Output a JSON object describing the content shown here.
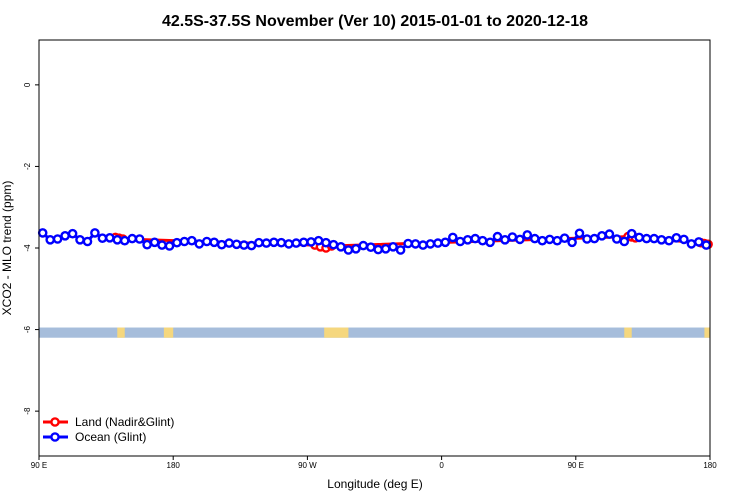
{
  "chart_data": {
    "type": "line",
    "title": "42.5S-37.5S November (Ver 10)   2015-01-01 to 2020-12-18",
    "xlabel": "Longitude (deg E)",
    "ylabel": "XCO2 - MLO trend (ppm)",
    "xlim": [
      90,
      450
    ],
    "ylim": [
      -9.1,
      1.1
    ],
    "x_ticks": [
      {
        "value": 90,
        "label": "90 E"
      },
      {
        "value": 162,
        "label": "180"
      },
      {
        "value": 234,
        "label": "90 W"
      },
      {
        "value": 306,
        "label": "0"
      },
      {
        "value": 378,
        "label": "90 E"
      },
      {
        "value": 450,
        "label": "180"
      }
    ],
    "y_ticks": [
      {
        "value": 0,
        "label": "0"
      },
      {
        "value": -2,
        "label": "-2"
      },
      {
        "value": -4,
        "label": "-4"
      },
      {
        "value": -6,
        "label": "-6"
      },
      {
        "value": -8,
        "label": "-8"
      }
    ],
    "legend_position": "bottom-left",
    "colors": {
      "land": "#ff0000",
      "ocean": "#0000ff",
      "ocean_band": "#a6bddb",
      "land_band": "#f5d77e"
    },
    "surface_band": {
      "y_top": -5.95,
      "y_bottom": -6.2,
      "land_segments": [
        [
          132,
          136
        ],
        [
          157,
          162
        ],
        [
          243,
          256
        ],
        [
          404,
          408
        ],
        [
          447,
          450
        ]
      ]
    },
    "series": [
      {
        "name": "Land (Nadir&Glint)",
        "x": [
          131,
          133,
          135,
          238,
          241,
          244,
          247,
          406,
          408,
          410,
          445,
          447,
          449
        ],
        "y": [
          -3.74,
          -3.76,
          -3.78,
          -3.93,
          -3.97,
          -4.0,
          -3.95,
          -3.72,
          -3.73,
          -3.75,
          -3.87,
          -3.89,
          -3.91
        ]
      },
      {
        "name": "Ocean (Glint)",
        "x": [
          92,
          96,
          100,
          104,
          108,
          112,
          116,
          120,
          124,
          128,
          132,
          136,
          140,
          144,
          148,
          152,
          156,
          160,
          164,
          168,
          172,
          176,
          180,
          184,
          188,
          192,
          196,
          200,
          204,
          208,
          212,
          216,
          220,
          224,
          228,
          232,
          236,
          240,
          244,
          248,
          252,
          256,
          260,
          264,
          268,
          272,
          276,
          280,
          284,
          288,
          292,
          296,
          300,
          304,
          308,
          312,
          316,
          320,
          324,
          328,
          332,
          336,
          340,
          344,
          348,
          352,
          356,
          360,
          364,
          368,
          372,
          376,
          380,
          384,
          388,
          392,
          396,
          400,
          404,
          408,
          412,
          416,
          420,
          424,
          428,
          432,
          436,
          440,
          444,
          448
        ],
        "y": [
          -3.63,
          -3.8,
          -3.78,
          -3.7,
          -3.65,
          -3.8,
          -3.84,
          -3.63,
          -3.76,
          -3.75,
          -3.8,
          -3.82,
          -3.77,
          -3.78,
          -3.92,
          -3.86,
          -3.93,
          -3.95,
          -3.87,
          -3.84,
          -3.82,
          -3.9,
          -3.84,
          -3.86,
          -3.92,
          -3.88,
          -3.91,
          -3.93,
          -3.94,
          -3.87,
          -3.88,
          -3.86,
          -3.87,
          -3.9,
          -3.88,
          -3.86,
          -3.85,
          -3.82,
          -3.87,
          -3.92,
          -3.97,
          -4.05,
          -4.02,
          -3.94,
          -3.98,
          -4.04,
          -4.02,
          -3.97,
          -4.05,
          -3.89,
          -3.9,
          -3.93,
          -3.9,
          -3.88,
          -3.86,
          -3.74,
          -3.84,
          -3.8,
          -3.77,
          -3.82,
          -3.86,
          -3.72,
          -3.8,
          -3.73,
          -3.79,
          -3.68,
          -3.77,
          -3.82,
          -3.79,
          -3.82,
          -3.76,
          -3.86,
          -3.64,
          -3.78,
          -3.77,
          -3.7,
          -3.66,
          -3.78,
          -3.84,
          -3.65,
          -3.74,
          -3.77,
          -3.77,
          -3.8,
          -3.82,
          -3.75,
          -3.79,
          -3.9,
          -3.85,
          -3.93
        ]
      }
    ]
  }
}
